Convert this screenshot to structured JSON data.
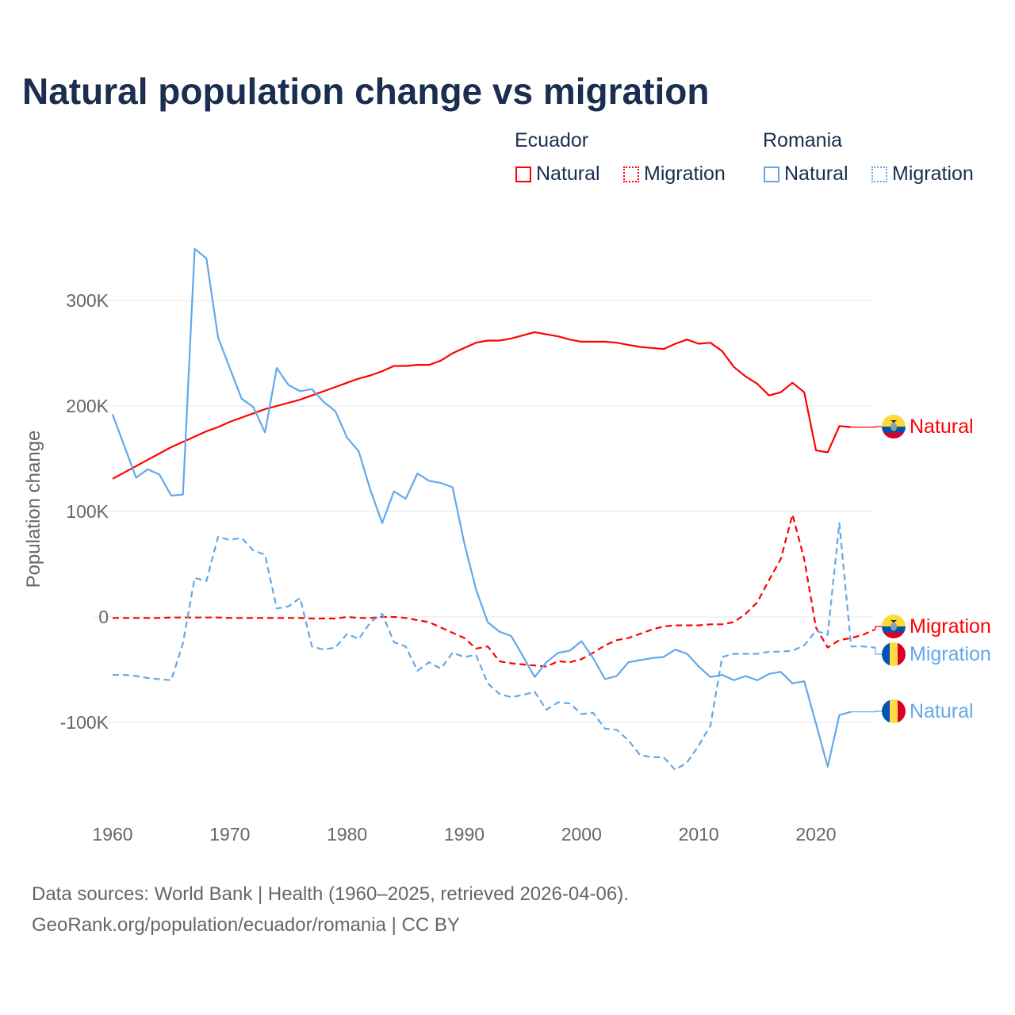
{
  "chart_data": {
    "type": "line",
    "title": "Natural population change vs migration",
    "ylabel": "Population change",
    "xlabel": "",
    "xlim": [
      1960,
      2025
    ],
    "ylim": [
      -175000,
      350000
    ],
    "x_ticks": [
      1960,
      1970,
      1980,
      1990,
      2000,
      2010,
      2020
    ],
    "y_ticks": [
      {
        "v": -100000,
        "label": "-100K"
      },
      {
        "v": 0,
        "label": "0"
      },
      {
        "v": 100000,
        "label": "100K"
      },
      {
        "v": 200000,
        "label": "200K"
      },
      {
        "v": 300000,
        "label": "300K"
      }
    ],
    "grid": true,
    "legend": {
      "placement": "top-right",
      "groups": [
        {
          "country": "Ecuador",
          "items": [
            "Natural",
            "Migration"
          ]
        },
        {
          "country": "Romania",
          "items": [
            "Natural",
            "Migration"
          ]
        }
      ]
    },
    "series": [
      {
        "name": "Ecuador Natural",
        "country": "Ecuador",
        "kind": "Natural",
        "color": "#ff0000",
        "dash": false,
        "end_label": "Natural",
        "start_year": 1960,
        "values_k": [
          131,
          137,
          143,
          149,
          155,
          161,
          166,
          171,
          176,
          180,
          185,
          189,
          193,
          197,
          200,
          203,
          206,
          210,
          214,
          218,
          222,
          226,
          229,
          233,
          238,
          238,
          239,
          239,
          243,
          250,
          255,
          260,
          262,
          262,
          264,
          267,
          270,
          268,
          266,
          263,
          261,
          261,
          261,
          260,
          258,
          256,
          255,
          254,
          259,
          263,
          259,
          260,
          252,
          237,
          228,
          221,
          210,
          213,
          222,
          213,
          158,
          156,
          181,
          180
        ]
      },
      {
        "name": "Ecuador Migration",
        "country": "Ecuador",
        "kind": "Migration",
        "color": "#ff0000",
        "dash": true,
        "end_label": "Migration",
        "start_year": 1960,
        "values_k": [
          -1,
          -1,
          -1,
          -1,
          -1,
          -0.5,
          -0.5,
          -0.5,
          -0.5,
          -0.5,
          -1,
          -1,
          -1,
          -1,
          -1,
          -1,
          -1,
          -1.5,
          -1.5,
          -1.5,
          0,
          -1,
          -1,
          0,
          0,
          -1,
          -3,
          -5,
          -10,
          -15,
          -20,
          -30,
          -28,
          -42,
          -44,
          -45,
          -46,
          -47,
          -42,
          -43,
          -40,
          -34,
          -27,
          -22,
          -20,
          -16,
          -12,
          -9,
          -8,
          -8,
          -8,
          -7,
          -7,
          -5,
          3,
          14,
          35,
          55,
          97,
          55,
          -10,
          -29,
          -22,
          -20,
          -17,
          -12
        ]
      },
      {
        "name": "Romania Natural",
        "country": "Romania",
        "kind": "Natural",
        "color": "#62a8ea",
        "dash": false,
        "end_label": "Natural",
        "start_year": 1960,
        "values_k": [
          192,
          162,
          132,
          140,
          135,
          115,
          116,
          349,
          340,
          265,
          236,
          207,
          199,
          175,
          236,
          220,
          214,
          216,
          204,
          195,
          170,
          157,
          120,
          89,
          119,
          112,
          136,
          129,
          127,
          123,
          70,
          26,
          -5,
          -14,
          -18,
          -37,
          -57,
          -43,
          -34,
          -32,
          -23,
          -39,
          -59,
          -56,
          -43,
          -41,
          -39,
          -38,
          -31,
          -35,
          -47,
          -57,
          -55,
          -60,
          -56,
          -60,
          -54,
          -52,
          -63,
          -61,
          -101,
          -142,
          -93,
          -90
        ]
      },
      {
        "name": "Romania Migration",
        "country": "Romania",
        "kind": "Migration",
        "color": "#62a8ea",
        "dash": true,
        "end_label": "Migration",
        "start_year": 1960,
        "values_k": [
          -55,
          -55,
          -56,
          -58,
          -59,
          -60,
          -25,
          37,
          34,
          76,
          73,
          75,
          63,
          59,
          8,
          10,
          18,
          -28,
          -31,
          -29,
          -16,
          -21,
          -5,
          3,
          -24,
          -28,
          -51,
          -43,
          -49,
          -34,
          -38,
          -36,
          -63,
          -73,
          -76,
          -74,
          -71,
          -88,
          -81,
          -82,
          -92,
          -91,
          -106,
          -107,
          -117,
          -131,
          -133,
          -133,
          -145,
          -138,
          -122,
          -103,
          -38,
          -35,
          -35,
          -35,
          -33,
          -33,
          -32,
          -27,
          -13,
          -17,
          89,
          -28,
          -28,
          -29
        ]
      }
    ]
  },
  "footer": {
    "line1": "Data sources: World Bank | Health (1960–2025, retrieved 2026-04-06).",
    "line2": "GeoRank.org/population/ecuador/romania | CC BY"
  }
}
